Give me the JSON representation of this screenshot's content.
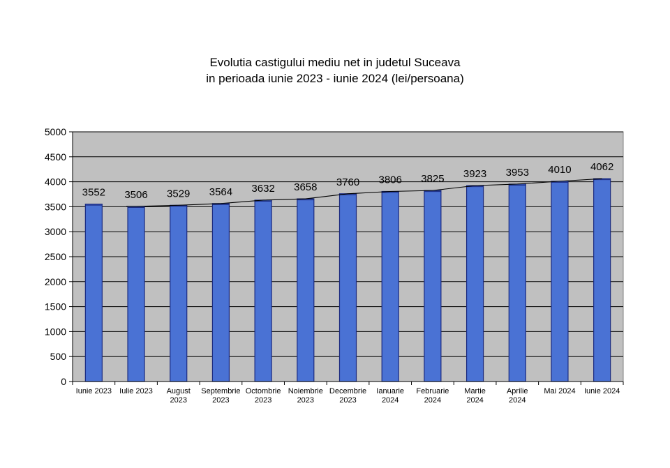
{
  "chart_data": {
    "type": "bar",
    "title_lines": [
      "Evolutia castigului mediu net in judetul Suceava",
      "in perioada iunie 2023 - iunie 2024 (lei/persoana)"
    ],
    "categories": [
      [
        "Iunie 2023"
      ],
      [
        "Iulie 2023"
      ],
      [
        "August",
        "2023"
      ],
      [
        "Septembrie",
        "2023"
      ],
      [
        "Octombrie",
        "2023"
      ],
      [
        "Noiembrie",
        "2023"
      ],
      [
        "Decembrie",
        "2023"
      ],
      [
        "Ianuarie",
        "2024"
      ],
      [
        "Februarie",
        "2024"
      ],
      [
        "Martie",
        "2024"
      ],
      [
        "Aprilie",
        "2024"
      ],
      [
        "Mai 2024"
      ],
      [
        "Iunie 2024"
      ]
    ],
    "values": [
      3552,
      3506,
      3529,
      3564,
      3632,
      3658,
      3760,
      3806,
      3825,
      3923,
      3953,
      4010,
      4062
    ],
    "trendline": true,
    "ylim": [
      0,
      5000
    ],
    "yticks": [
      0,
      500,
      1000,
      1500,
      2000,
      2500,
      3000,
      3500,
      4000,
      4500,
      5000
    ],
    "grid": true,
    "legend": "none",
    "colors": {
      "plot_background": "#c0c0c0",
      "bar_fill": "#4a72d4",
      "bar_stroke": "#1a2a80",
      "trendline": "#000000",
      "gridline": "#000000"
    }
  }
}
